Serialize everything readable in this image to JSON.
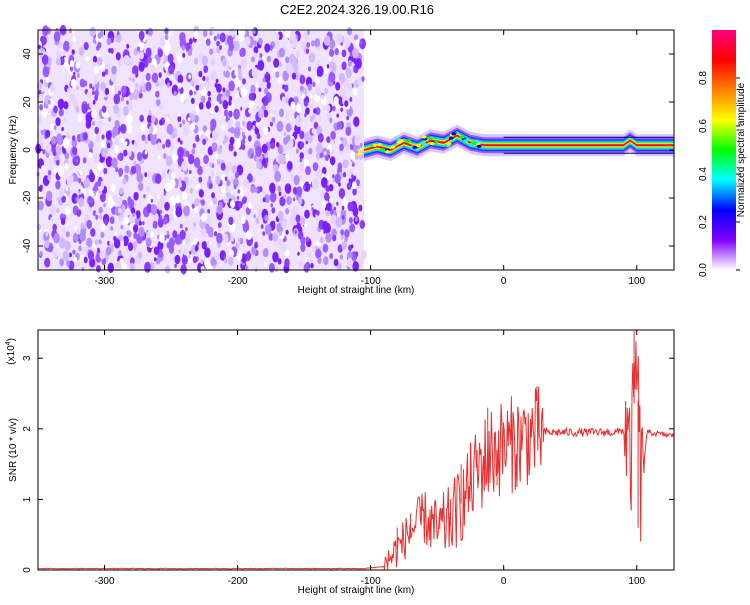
{
  "title": "C2E2.2024.326.19.00.R16",
  "chart_data": [
    {
      "type": "heatmap",
      "xlabel": "Height of straight line (km)",
      "ylabel": "Frequency (Hz)",
      "xlim": [
        -350,
        128
      ],
      "ylim": [
        -50,
        50
      ],
      "x_ticks": [
        -300,
        -200,
        -100,
        0,
        100
      ],
      "y_ticks": [
        -40,
        -20,
        0,
        20,
        40
      ],
      "colorbar": {
        "label": "Normalized spectral amplitude",
        "range": [
          0,
          1
        ],
        "ticks": [
          "0.0",
          "0.2",
          "0.4",
          "0.6",
          "0.8"
        ],
        "colors": [
          "#ffffff",
          "#8000ff",
          "#0000ff",
          "#00ffff",
          "#00ff00",
          "#ffff00",
          "#ff8000",
          "#ff0000",
          "#ff0080"
        ]
      },
      "noise_region_x": [
        -350,
        -105
      ],
      "signal_line": [
        {
          "x": -105,
          "freq": 0
        },
        {
          "x": -95,
          "freq": 1.5
        },
        {
          "x": -85,
          "freq": 0
        },
        {
          "x": -75,
          "freq": 3
        },
        {
          "x": -65,
          "freq": 1
        },
        {
          "x": -55,
          "freq": 4
        },
        {
          "x": -45,
          "freq": 3
        },
        {
          "x": -35,
          "freq": 6
        },
        {
          "x": -25,
          "freq": 3
        },
        {
          "x": -15,
          "freq": 2
        },
        {
          "x": 0,
          "freq": 2
        },
        {
          "x": 50,
          "freq": 2
        },
        {
          "x": 90,
          "freq": 2
        },
        {
          "x": 95,
          "freq": 4
        },
        {
          "x": 100,
          "freq": 2
        },
        {
          "x": 128,
          "freq": 2
        }
      ]
    },
    {
      "type": "line",
      "xlabel": "Height of straight line (km)",
      "ylabel": "SNR (10 * v/v)",
      "multiplier": "(x10",
      "multiplier_exp": "4",
      "xlim": [
        -350,
        128
      ],
      "ylim": [
        0,
        3.4
      ],
      "x_ticks": [
        -300,
        -200,
        -100,
        0,
        100
      ],
      "y_ticks": [
        0,
        1,
        2,
        3
      ],
      "series": [
        {
          "color": "#e83030",
          "points": [
            [
              -350,
              0.02
            ],
            [
              -250,
              0.02
            ],
            [
              -150,
              0.02
            ],
            [
              -105,
              0.02
            ],
            [
              -90,
              0.05
            ],
            [
              -80,
              0.3
            ],
            [
              -70,
              0.55
            ],
            [
              -60,
              0.75
            ],
            [
              -50,
              0.55
            ],
            [
              -40,
              0.7
            ],
            [
              -30,
              1.0
            ],
            [
              -20,
              1.4
            ],
            [
              -10,
              1.65
            ],
            [
              0,
              1.75
            ],
            [
              10,
              1.8
            ],
            [
              20,
              1.9
            ],
            [
              30,
              1.95
            ],
            [
              50,
              1.95
            ],
            [
              70,
              1.95
            ],
            [
              85,
              1.95
            ],
            [
              92,
              2.0
            ],
            [
              95,
              1.4
            ],
            [
              100,
              3.0
            ],
            [
              103,
              1.2
            ],
            [
              108,
              1.95
            ],
            [
              128,
              1.9
            ]
          ],
          "spikes": [
            [
              -80,
              0.6
            ],
            [
              -70,
              0.8
            ],
            [
              -62,
              0.9
            ],
            [
              -55,
              0.7
            ],
            [
              -48,
              0.8
            ],
            [
              -40,
              1.0
            ],
            [
              -32,
              1.5
            ],
            [
              -25,
              1.8
            ],
            [
              -20,
              1.7
            ],
            [
              -12,
              2.3
            ],
            [
              -5,
              1.2
            ],
            [
              5,
              2.0
            ],
            [
              98,
              3.4
            ],
            [
              101,
              0.6
            ]
          ]
        }
      ]
    }
  ]
}
